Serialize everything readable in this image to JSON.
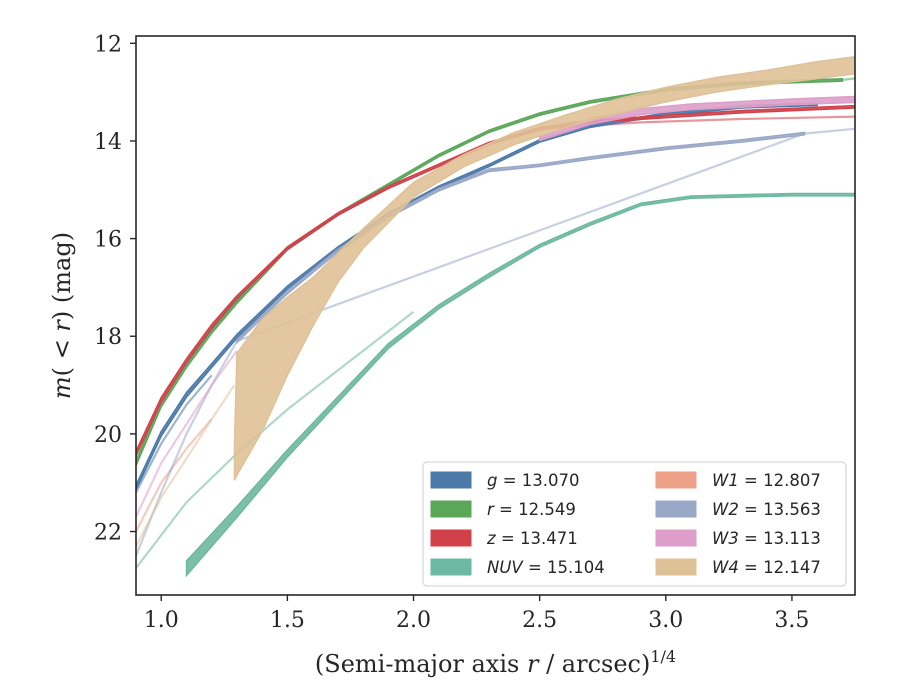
{
  "chart_data": {
    "type": "line",
    "title": "",
    "xlabel": "(Semi-major axis r / arcsec)",
    "xlabel_parts": {
      "pre": "(Semi-major axis ",
      "var": "r",
      "post": " / arcsec)",
      "sup": "1/4"
    },
    "ylabel": "m(< r) (mag)",
    "ylabel_parts": {
      "m": "m",
      "lpar": "(",
      "lt": "<",
      "r": "r",
      "rpar": ")",
      "unit": " (mag)"
    },
    "xlim": [
      0.9,
      3.75
    ],
    "ylim": [
      23.3,
      11.85
    ],
    "y_inverted": true,
    "xticks": [
      1.0,
      1.5,
      2.0,
      2.5,
      3.0,
      3.5
    ],
    "xtick_labels": [
      "1.0",
      "1.5",
      "2.0",
      "2.5",
      "3.0",
      "3.5"
    ],
    "yticks": [
      12,
      14,
      16,
      18,
      20,
      22
    ],
    "ytick_labels": [
      "12",
      "14",
      "16",
      "18",
      "20",
      "22"
    ],
    "grid": false,
    "legend_position": "lower-right",
    "legend_columns": 2,
    "series": [
      {
        "name": "g",
        "total_mag": "13.070",
        "color": "#4c7aa8",
        "band": {
          "x": [
            0.9,
            1.0,
            1.1,
            1.2,
            1.3,
            1.5,
            1.7,
            1.9,
            2.1,
            2.3,
            2.5,
            2.7,
            3.0,
            3.3,
            3.6
          ],
          "y": [
            21.1,
            20.0,
            19.2,
            18.6,
            18.0,
            17.0,
            16.2,
            15.5,
            14.95,
            14.5,
            14.0,
            13.7,
            13.45,
            13.3,
            13.25
          ],
          "width": [
            0.1,
            0.1,
            0.1,
            0.08,
            0.08,
            0.06,
            0.06,
            0.05,
            0.05,
            0.05,
            0.05,
            0.05,
            0.05,
            0.05,
            0.05
          ]
        },
        "extrapolation": {
          "x": [
            0.9,
            1.0,
            1.1,
            1.2
          ],
          "y": [
            21.2,
            20.2,
            19.4,
            18.8
          ]
        }
      },
      {
        "name": "r",
        "total_mag": "12.549",
        "color": "#5aa75a",
        "band": {
          "x": [
            0.9,
            1.0,
            1.1,
            1.2,
            1.3,
            1.5,
            1.7,
            1.9,
            2.1,
            2.3,
            2.5,
            2.7,
            3.0,
            3.3,
            3.7
          ],
          "y": [
            20.6,
            19.4,
            18.6,
            17.9,
            17.3,
            16.2,
            15.5,
            14.9,
            14.3,
            13.8,
            13.45,
            13.2,
            12.95,
            12.82,
            12.75
          ],
          "width": [
            0.1,
            0.1,
            0.08,
            0.08,
            0.06,
            0.06,
            0.05,
            0.05,
            0.05,
            0.05,
            0.05,
            0.05,
            0.05,
            0.05,
            0.05
          ]
        },
        "extrapolation": {
          "x": [
            3.7,
            3.75
          ],
          "y": [
            12.75,
            12.72
          ]
        }
      },
      {
        "name": "z",
        "total_mag": "13.471",
        "color": "#d0414a",
        "band": {
          "x": [
            0.9,
            1.0,
            1.1,
            1.2,
            1.3,
            1.5,
            1.7,
            1.9,
            2.1,
            2.3,
            2.5,
            2.7,
            3.0,
            3.3,
            3.75
          ],
          "y": [
            20.4,
            19.3,
            18.5,
            17.8,
            17.2,
            16.2,
            15.5,
            14.95,
            14.5,
            14.05,
            13.75,
            13.6,
            13.5,
            13.4,
            13.3
          ],
          "width": [
            0.1,
            0.1,
            0.08,
            0.08,
            0.06,
            0.06,
            0.05,
            0.05,
            0.05,
            0.05,
            0.05,
            0.05,
            0.05,
            0.05,
            0.05
          ]
        },
        "extrapolation": {
          "x": [
            2.5,
            2.9,
            3.3,
            3.75
          ],
          "y": [
            13.75,
            13.62,
            13.55,
            13.5
          ]
        }
      },
      {
        "name": "NUV",
        "total_mag": "15.104",
        "color": "#6db8a0",
        "band": {
          "x": [
            1.1,
            1.3,
            1.5,
            1.7,
            1.9,
            2.1,
            2.3,
            2.5,
            2.7,
            2.9,
            3.1,
            3.5,
            3.75
          ],
          "y": [
            22.75,
            21.6,
            20.4,
            19.3,
            18.2,
            17.4,
            16.75,
            16.15,
            15.7,
            15.3,
            15.15,
            15.1,
            15.1
          ],
          "width": [
            0.3,
            0.22,
            0.15,
            0.12,
            0.1,
            0.08,
            0.08,
            0.06,
            0.06,
            0.05,
            0.05,
            0.05,
            0.05
          ]
        },
        "extrapolation": {
          "x": [
            0.9,
            1.1,
            1.3,
            1.5,
            1.7,
            1.9,
            2.0
          ],
          "y": [
            22.75,
            21.4,
            20.4,
            19.5,
            18.7,
            17.9,
            17.5
          ]
        }
      },
      {
        "name": "W1",
        "total_mag": "12.807",
        "color": "#eca088",
        "band": {
          "x": [],
          "y": [],
          "width": []
        },
        "extrapolation": {
          "x": [
            0.9,
            1.0,
            1.1,
            1.2
          ],
          "y": [
            22.0,
            21.0,
            20.3,
            19.7
          ]
        }
      },
      {
        "name": "W2",
        "total_mag": "13.563",
        "color": "#9aa8c8",
        "band": {
          "x": [
            1.3,
            1.5,
            1.7,
            1.9,
            2.1,
            2.3,
            2.5,
            2.7,
            3.0,
            3.3,
            3.55
          ],
          "y": [
            18.1,
            17.1,
            16.25,
            15.55,
            15.0,
            14.6,
            14.5,
            14.35,
            14.15,
            14.0,
            13.85
          ],
          "width": [
            0.06,
            0.06,
            0.05,
            0.05,
            0.05,
            0.05,
            0.05,
            0.05,
            0.05,
            0.05,
            0.05
          ]
        },
        "extrapolation": {
          "x": [
            0.9,
            1.0,
            1.1,
            1.2,
            1.3,
            3.55,
            3.75
          ],
          "y": [
            22.5,
            21.2,
            20.0,
            19.0,
            18.1,
            13.85,
            13.75
          ]
        }
      },
      {
        "name": "W3",
        "total_mag": "13.113",
        "color": "#dd9ec9",
        "band": {
          "x": [
            2.5,
            2.7,
            2.9,
            3.1,
            3.3,
            3.5,
            3.75
          ],
          "y": [
            13.95,
            13.6,
            13.4,
            13.3,
            13.25,
            13.2,
            13.15
          ],
          "width": [
            0.08,
            0.12,
            0.12,
            0.12,
            0.12,
            0.12,
            0.12
          ]
        },
        "extrapolation": {
          "x": [
            0.9,
            1.0,
            1.1,
            1.2,
            1.3
          ],
          "y": [
            21.7,
            20.6,
            19.8,
            19.0,
            18.3
          ]
        }
      },
      {
        "name": "W4",
        "total_mag": "12.147",
        "color": "#dfc197",
        "band": {
          "x": [
            1.29,
            1.3,
            1.4,
            1.5,
            1.6,
            1.7,
            1.8,
            1.9,
            2.0,
            2.2,
            2.4,
            2.6,
            2.8,
            3.0,
            3.2,
            3.4,
            3.6,
            3.75
          ],
          "y": [
            20.6,
            19.6,
            18.8,
            18.0,
            17.3,
            16.6,
            16.0,
            15.5,
            15.0,
            14.4,
            13.95,
            13.6,
            13.3,
            13.05,
            12.85,
            12.7,
            12.55,
            12.45
          ],
          "width": [
            0.7,
            2.5,
            2.3,
            1.6,
            1.0,
            0.6,
            0.4,
            0.35,
            0.3,
            0.25,
            0.25,
            0.25,
            0.3,
            0.3,
            0.3,
            0.3,
            0.35,
            0.35
          ]
        },
        "extrapolation": {
          "x": [
            0.9,
            1.0,
            1.1,
            1.2,
            1.29
          ],
          "y": [
            22.3,
            21.3,
            20.5,
            19.7,
            19.0
          ]
        }
      }
    ],
    "legend": {
      "left_column": [
        "g",
        "r",
        "z",
        "NUV"
      ],
      "right_column": [
        "W1",
        "W2",
        "W3",
        "W4"
      ]
    }
  }
}
